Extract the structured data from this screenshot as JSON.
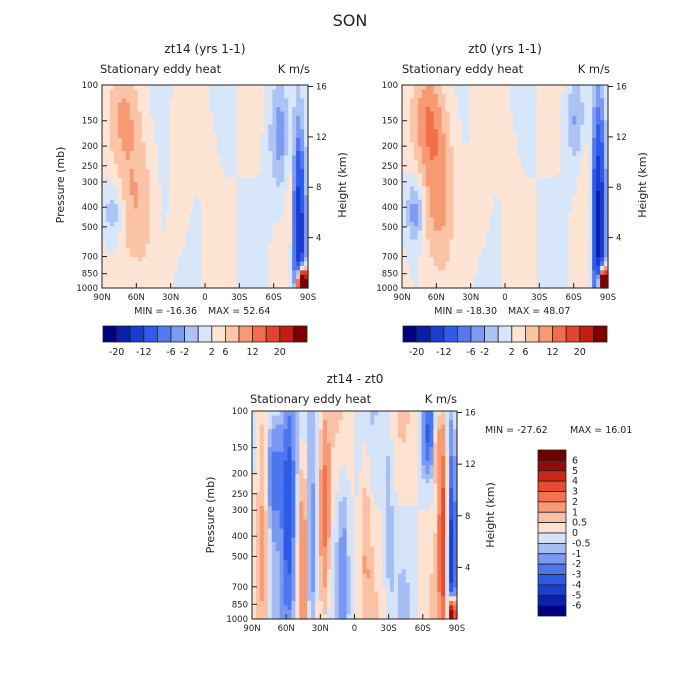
{
  "figure_title": "SON",
  "chart_data": [
    {
      "type": "heatmap",
      "title": "zt14 (yrs 1-1)",
      "subtitle": "Stationary eddy heat",
      "units": "K m/s",
      "xlabel": "",
      "ylabel": "Pressure (mb)",
      "ylabel_right": "Height (km)",
      "x_ticks": [
        "90N",
        "60N",
        "30N",
        "0",
        "30S",
        "60S",
        "90S"
      ],
      "y_ticks": [
        "100",
        "150",
        "200",
        "250",
        "300",
        "400",
        "500",
        "700",
        "850",
        "1000"
      ],
      "y_right_ticks": [
        "16",
        "12",
        "8",
        "4"
      ],
      "xlim": [
        90,
        -90
      ],
      "ylim": [
        1000,
        100
      ],
      "y_scale": "log",
      "min_label": "MIN = -16.36",
      "max_label": "MAX = 52.64",
      "min": -16.36,
      "max": 52.64,
      "colorbar": {
        "orientation": "horizontal",
        "labels": [
          "-20",
          "-12",
          "-6",
          "-2",
          "2",
          "6",
          "12",
          "20"
        ],
        "levels": [
          -20,
          -16,
          -12,
          -8,
          -6,
          -4,
          -2,
          0,
          2,
          4,
          6,
          8,
          12,
          16,
          20
        ],
        "colors": [
          "#00007f",
          "#0a1ea8",
          "#1a3cd1",
          "#2e5bea",
          "#5279ef",
          "#7e9bf2",
          "#aec3f5",
          "#d8e6fa",
          "#fde4d4",
          "#fbc4a7",
          "#f79a73",
          "#f06e49",
          "#e2432a",
          "#c01e12",
          "#7f0000"
        ]
      },
      "features": [
        {
          "lat": 62,
          "p": 380,
          "value": 4.2,
          "dlat": 12,
          "dlogp": 0.25
        },
        {
          "lat": 72,
          "p": 140,
          "value": 3.5,
          "dlat": 10,
          "dlogp": 0.16
        },
        {
          "lat": 80,
          "p": 420,
          "value": -4.0,
          "dlat": 6,
          "dlogp": 0.1
        },
        {
          "lat": 20,
          "p": 300,
          "value": 0.8,
          "dlat": 6,
          "dlogp": 0.3
        },
        {
          "lat": -5,
          "p": 400,
          "value": 0.7,
          "dlat": 5,
          "dlogp": 0.35
        },
        {
          "lat": 40,
          "p": 450,
          "value": -0.9,
          "dlat": 6,
          "dlogp": 0.3
        },
        {
          "lat": -65,
          "p": 180,
          "value": -5.0,
          "dlat": 6,
          "dlogp": 0.18
        },
        {
          "lat": -75,
          "p": 350,
          "value": 3.0,
          "dlat": 3,
          "dlogp": 0.3
        },
        {
          "lat": -82,
          "p": 550,
          "value": -16.0,
          "dlat": 4,
          "dlogp": 0.35
        },
        {
          "lat": -85,
          "p": 950,
          "value": 40.0,
          "dlat": 3,
          "dlogp": 0.05
        }
      ]
    },
    {
      "type": "heatmap",
      "title": "zt0 (yrs 1-1)",
      "subtitle": "Stationary eddy heat",
      "units": "K m/s",
      "xlabel": "",
      "ylabel": "",
      "ylabel_right": "Height (km)",
      "x_ticks": [
        "90N",
        "60N",
        "30N",
        "0",
        "30S",
        "60S",
        "90S"
      ],
      "y_ticks": [
        "100",
        "150",
        "200",
        "250",
        "300",
        "400",
        "500",
        "700",
        "850",
        "1000"
      ],
      "y_right_ticks": [
        "16",
        "12",
        "8",
        "4"
      ],
      "xlim": [
        90,
        -90
      ],
      "ylim": [
        1000,
        100
      ],
      "y_scale": "log",
      "min_label": "MIN = -18.30",
      "max_label": "MAX = 48.07",
      "min": -18.3,
      "max": 48.07,
      "colorbar": {
        "orientation": "horizontal",
        "labels": [
          "-20",
          "-12",
          "-6",
          "-2",
          "2",
          "6",
          "12",
          "20"
        ],
        "levels": [
          -20,
          -16,
          -12,
          -8,
          -6,
          -4,
          -2,
          0,
          2,
          4,
          6,
          8,
          12,
          16,
          20
        ],
        "colors": [
          "#00007f",
          "#0a1ea8",
          "#1a3cd1",
          "#2e5bea",
          "#5279ef",
          "#7e9bf2",
          "#aec3f5",
          "#d8e6fa",
          "#fde4d4",
          "#fbc4a7",
          "#f79a73",
          "#f06e49",
          "#e2432a",
          "#c01e12",
          "#7f0000"
        ]
      },
      "features": [
        {
          "lat": 60,
          "p": 330,
          "value": 5.5,
          "dlat": 12,
          "dlogp": 0.28
        },
        {
          "lat": 68,
          "p": 140,
          "value": 4.0,
          "dlat": 10,
          "dlogp": 0.16
        },
        {
          "lat": 78,
          "p": 420,
          "value": -6.0,
          "dlat": 6,
          "dlogp": 0.12
        },
        {
          "lat": 20,
          "p": 300,
          "value": 0.8,
          "dlat": 6,
          "dlogp": 0.3
        },
        {
          "lat": -5,
          "p": 400,
          "value": 0.7,
          "dlat": 5,
          "dlogp": 0.35
        },
        {
          "lat": 40,
          "p": 450,
          "value": -0.9,
          "dlat": 6,
          "dlogp": 0.3
        },
        {
          "lat": -62,
          "p": 150,
          "value": -4.0,
          "dlat": 6,
          "dlogp": 0.15
        },
        {
          "lat": -70,
          "p": 300,
          "value": 2.0,
          "dlat": 4,
          "dlogp": 0.3
        },
        {
          "lat": -82,
          "p": 500,
          "value": -18.0,
          "dlat": 4,
          "dlogp": 0.4
        },
        {
          "lat": -86,
          "p": 950,
          "value": 38.0,
          "dlat": 3,
          "dlogp": 0.05
        }
      ]
    },
    {
      "type": "heatmap",
      "title": "zt14 - zt0",
      "subtitle": "Stationary eddy heat",
      "units": "K m/s",
      "xlabel": "",
      "ylabel": "Pressure (mb)",
      "ylabel_right": "Height (km)",
      "x_ticks": [
        "90N",
        "60N",
        "30N",
        "0",
        "30S",
        "60S",
        "90S"
      ],
      "y_ticks": [
        "100",
        "150",
        "200",
        "250",
        "300",
        "400",
        "500",
        "700",
        "850",
        "1000"
      ],
      "y_right_ticks": [
        "16",
        "12",
        "8",
        "4"
      ],
      "xlim": [
        90,
        -90
      ],
      "ylim": [
        1000,
        100
      ],
      "y_scale": "log",
      "min_label": "MIN = -27.62",
      "max_label": "MAX = 16.01",
      "min": -27.62,
      "max": 16.01,
      "colorbar": {
        "orientation": "vertical",
        "labels": [
          "6",
          "5",
          "4",
          "3",
          "2",
          "1",
          "0.5",
          "0",
          "-0.5",
          "-1",
          "-2",
          "-3",
          "-4",
          "-5",
          "-6"
        ],
        "levels": [
          -6,
          -5,
          -4,
          -3,
          -2,
          -1,
          -0.5,
          0,
          0.5,
          1,
          2,
          3,
          4,
          5,
          6
        ],
        "colors": [
          "#000080",
          "#0a21a8",
          "#1a3fd0",
          "#2d5ae6",
          "#4d76ee",
          "#7898f1",
          "#a7bdf4",
          "#d5e3f9",
          "#fde2d2",
          "#fbc1a4",
          "#f89a75",
          "#f3734f",
          "#e44b30",
          "#c92718",
          "#920d06",
          "#6e0000"
        ]
      },
      "features": [
        {
          "lat": 80,
          "p": 500,
          "value": 1.5,
          "dlat": 4,
          "dlogp": 0.4
        },
        {
          "lat": 70,
          "p": 200,
          "value": -3.0,
          "dlat": 5,
          "dlogp": 0.2
        },
        {
          "lat": 58,
          "p": 300,
          "value": -4.0,
          "dlat": 4,
          "dlogp": 0.4
        },
        {
          "lat": 45,
          "p": 400,
          "value": 1.5,
          "dlat": 3,
          "dlogp": 0.35
        },
        {
          "lat": 38,
          "p": 500,
          "value": -2.0,
          "dlat": 3,
          "dlogp": 0.3
        },
        {
          "lat": 26,
          "p": 300,
          "value": 2.5,
          "dlat": 3,
          "dlogp": 0.3
        },
        {
          "lat": 10,
          "p": 500,
          "value": -1.0,
          "dlat": 3,
          "dlogp": 0.3
        },
        {
          "lat": -10,
          "p": 350,
          "value": 0.8,
          "dlat": 3,
          "dlogp": 0.35
        },
        {
          "lat": -30,
          "p": 300,
          "value": -0.8,
          "dlat": 3,
          "dlogp": 0.3
        },
        {
          "lat": -65,
          "p": 130,
          "value": -3.0,
          "dlat": 4,
          "dlogp": 0.12
        },
        {
          "lat": -72,
          "p": 150,
          "value": 2.0,
          "dlat": 3,
          "dlogp": 0.12
        },
        {
          "lat": -78,
          "p": 400,
          "value": 4.0,
          "dlat": 3,
          "dlogp": 0.35
        },
        {
          "lat": -85,
          "p": 550,
          "value": -5.0,
          "dlat": 3,
          "dlogp": 0.4
        },
        {
          "lat": -86,
          "p": 950,
          "value": 12.0,
          "dlat": 2,
          "dlogp": 0.06
        }
      ]
    }
  ]
}
